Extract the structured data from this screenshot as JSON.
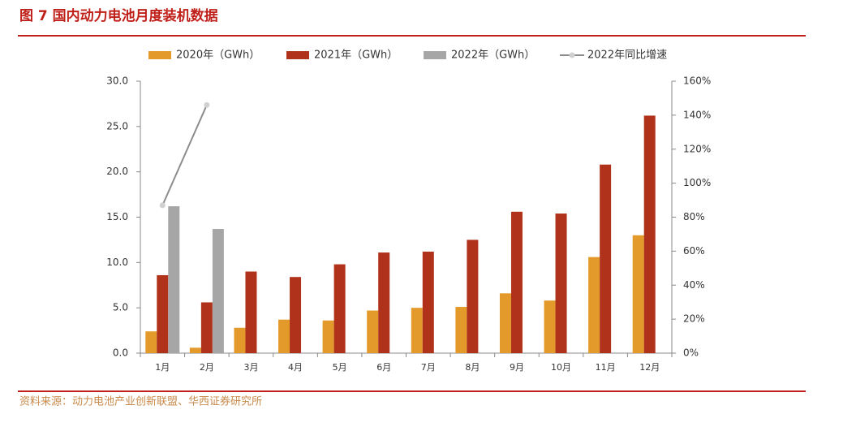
{
  "chart_data": {
    "type": "bar",
    "title": "图 7 国内动力电池月度装机数据",
    "source": "资料来源：动力电池产业创新联盟、华西证券研究所",
    "categories": [
      "1月",
      "2月",
      "3月",
      "4月",
      "5月",
      "6月",
      "7月",
      "8月",
      "9月",
      "10月",
      "11月",
      "12月"
    ],
    "series": [
      {
        "name": "2020年（GWh）",
        "color": "#e39a2a",
        "values": [
          2.4,
          0.6,
          2.8,
          3.7,
          3.6,
          4.7,
          5.0,
          5.1,
          6.6,
          5.8,
          10.6,
          13.0
        ]
      },
      {
        "name": "2021年（GWh）",
        "color": "#b0321a",
        "values": [
          8.6,
          5.6,
          9.0,
          8.4,
          9.8,
          11.1,
          11.2,
          12.5,
          15.6,
          15.4,
          20.8,
          26.2
        ]
      },
      {
        "name": "2022年（GWh）",
        "color": "#a6a6a6",
        "values": [
          16.2,
          13.7,
          null,
          null,
          null,
          null,
          null,
          null,
          null,
          null,
          null,
          null
        ]
      },
      {
        "name": "2022年同比增速",
        "color": "#8c8c8c",
        "type": "line",
        "axis": "y2",
        "values": [
          87,
          146,
          null,
          null,
          null,
          null,
          null,
          null,
          null,
          null,
          null,
          null
        ]
      }
    ],
    "ylim": [
      0,
      30
    ],
    "yticks": [
      {
        "value": 0,
        "label": "0.0"
      },
      {
        "value": 5,
        "label": "5.0"
      },
      {
        "value": 10,
        "label": "10.0"
      },
      {
        "value": 15,
        "label": "15.0"
      },
      {
        "value": 20,
        "label": "20.0"
      },
      {
        "value": 25,
        "label": "25.0"
      },
      {
        "value": 30,
        "label": "30.0"
      }
    ],
    "y2lim": [
      0,
      160
    ],
    "y2ticks": [
      {
        "value": 0,
        "label": "0%"
      },
      {
        "value": 20,
        "label": "20%"
      },
      {
        "value": 40,
        "label": "40%"
      },
      {
        "value": 60,
        "label": "60%"
      },
      {
        "value": 80,
        "label": "80%"
      },
      {
        "value": 100,
        "label": "100%"
      },
      {
        "value": 120,
        "label": "120%"
      },
      {
        "value": 140,
        "label": "140%"
      },
      {
        "value": 160,
        "label": "160%"
      }
    ],
    "grid": false,
    "legend": "top"
  }
}
